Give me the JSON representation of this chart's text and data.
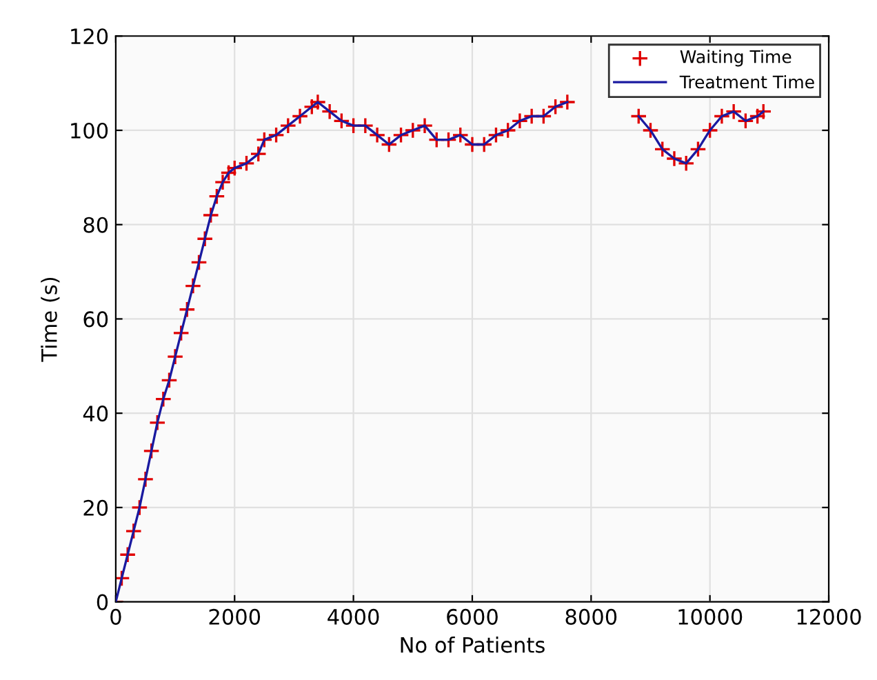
{
  "chart_data": {
    "type": "line",
    "xlabel": "No of Patients",
    "ylabel": "Time (s)",
    "x": [
      0,
      100,
      200,
      300,
      400,
      500,
      600,
      700,
      800,
      900,
      1000,
      1100,
      1200,
      1300,
      1400,
      1500,
      1600,
      1700,
      1800,
      1900,
      2000,
      2200,
      2400,
      2500,
      2700,
      2900,
      3100,
      3300,
      3400,
      3600,
      3800,
      4000,
      4200,
      4400,
      4600,
      4800,
      5000,
      5200,
      5400,
      5600,
      5800,
      6000,
      6200,
      6400,
      6600,
      6800,
      7000,
      7200,
      7400,
      7600,
      7800,
      8000,
      8200,
      8400,
      8600,
      8800,
      9000,
      9200,
      9400,
      9600,
      9800,
      10000,
      10200,
      10400,
      10600,
      10800,
      10900
    ],
    "series": [
      {
        "name": "Waiting Time",
        "type": "scatter",
        "marker": "cross",
        "color": "#e00000",
        "values": [
          0,
          5,
          10,
          15,
          20,
          26,
          32,
          38,
          43,
          47,
          52,
          57,
          62,
          67,
          72,
          77,
          82,
          86,
          89,
          91,
          92,
          93,
          95,
          98,
          99,
          101,
          103,
          105,
          106,
          104,
          102,
          101,
          101,
          99,
          97,
          99,
          100,
          101,
          98,
          98,
          99,
          97,
          97,
          99,
          100,
          102,
          103,
          103,
          105,
          106,
          null,
          null,
          null,
          null,
          null,
          103,
          100,
          96,
          94,
          93,
          96,
          100,
          103,
          104,
          102,
          103,
          104
        ]
      },
      {
        "name": "Treatment Time",
        "marker": "none",
        "color": "#1a1aa0",
        "values": [
          0,
          5,
          10,
          15,
          20,
          26,
          32,
          38,
          43,
          47,
          52,
          57,
          62,
          67,
          72,
          77,
          82,
          86,
          89,
          91,
          92,
          93,
          95,
          98,
          99,
          101,
          103,
          105,
          106,
          104,
          102,
          101,
          101,
          99,
          97,
          99,
          100,
          101,
          98,
          98,
          99,
          97,
          97,
          99,
          100,
          102,
          103,
          103,
          105,
          106,
          null,
          null,
          null,
          null,
          null,
          103,
          100,
          96,
          94,
          93,
          96,
          100,
          103,
          104,
          102,
          103,
          104
        ]
      }
    ],
    "xlim": [
      0,
      12000
    ],
    "xticks": [
      0,
      2000,
      4000,
      6000,
      8000,
      10000,
      12000
    ],
    "ylim": [
      0,
      120
    ],
    "yticks": [
      0,
      20,
      40,
      60,
      80,
      100,
      120
    ],
    "grid": true,
    "legend": "top right"
  }
}
